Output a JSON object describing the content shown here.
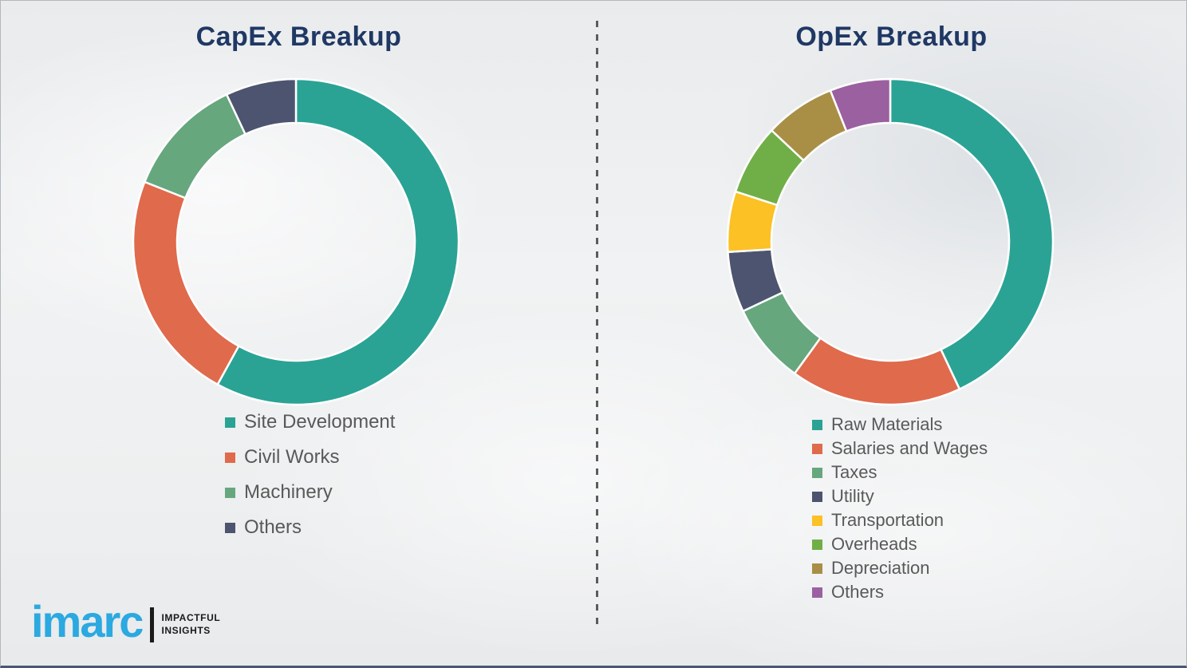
{
  "page": {
    "background_color": "#EDEFF0",
    "title_color": "#1F3864",
    "legend_text_color": "#595959",
    "divider_style": "vertical-dashed-gray"
  },
  "logo": {
    "brand": "imarc",
    "brand_color": "#2BA9E0",
    "tagline_line1": "IMPACTFUL",
    "tagline_line2": "INSIGHTS"
  },
  "chart_data": [
    {
      "type": "pie",
      "donut": true,
      "title": "CapEx Breakup",
      "categories": [
        "Site Development",
        "Civil Works",
        "Machinery",
        "Others"
      ],
      "values": [
        58,
        23,
        12,
        7
      ],
      "colors": [
        "#2AA395",
        "#E06A4C",
        "#66A77E",
        "#4D5470"
      ],
      "start_angle_deg": 0,
      "direction": "clockwise",
      "inner_radius_ratio": 0.73,
      "legend_position": "below-left",
      "data_labels": false
    },
    {
      "type": "pie",
      "donut": true,
      "title": "OpEx Breakup",
      "categories": [
        "Raw Materials",
        "Salaries and Wages",
        "Taxes",
        "Utility",
        "Transportation",
        "Overheads",
        "Depreciation",
        "Others"
      ],
      "values": [
        43,
        17,
        8,
        6,
        6,
        7,
        7,
        6
      ],
      "colors": [
        "#2AA395",
        "#E06A4C",
        "#66A77E",
        "#4D5470",
        "#FBC125",
        "#70AF47",
        "#A98F46",
        "#9B60A0"
      ],
      "start_angle_deg": 0,
      "direction": "clockwise",
      "inner_radius_ratio": 0.73,
      "legend_position": "below-left",
      "data_labels": false
    }
  ]
}
